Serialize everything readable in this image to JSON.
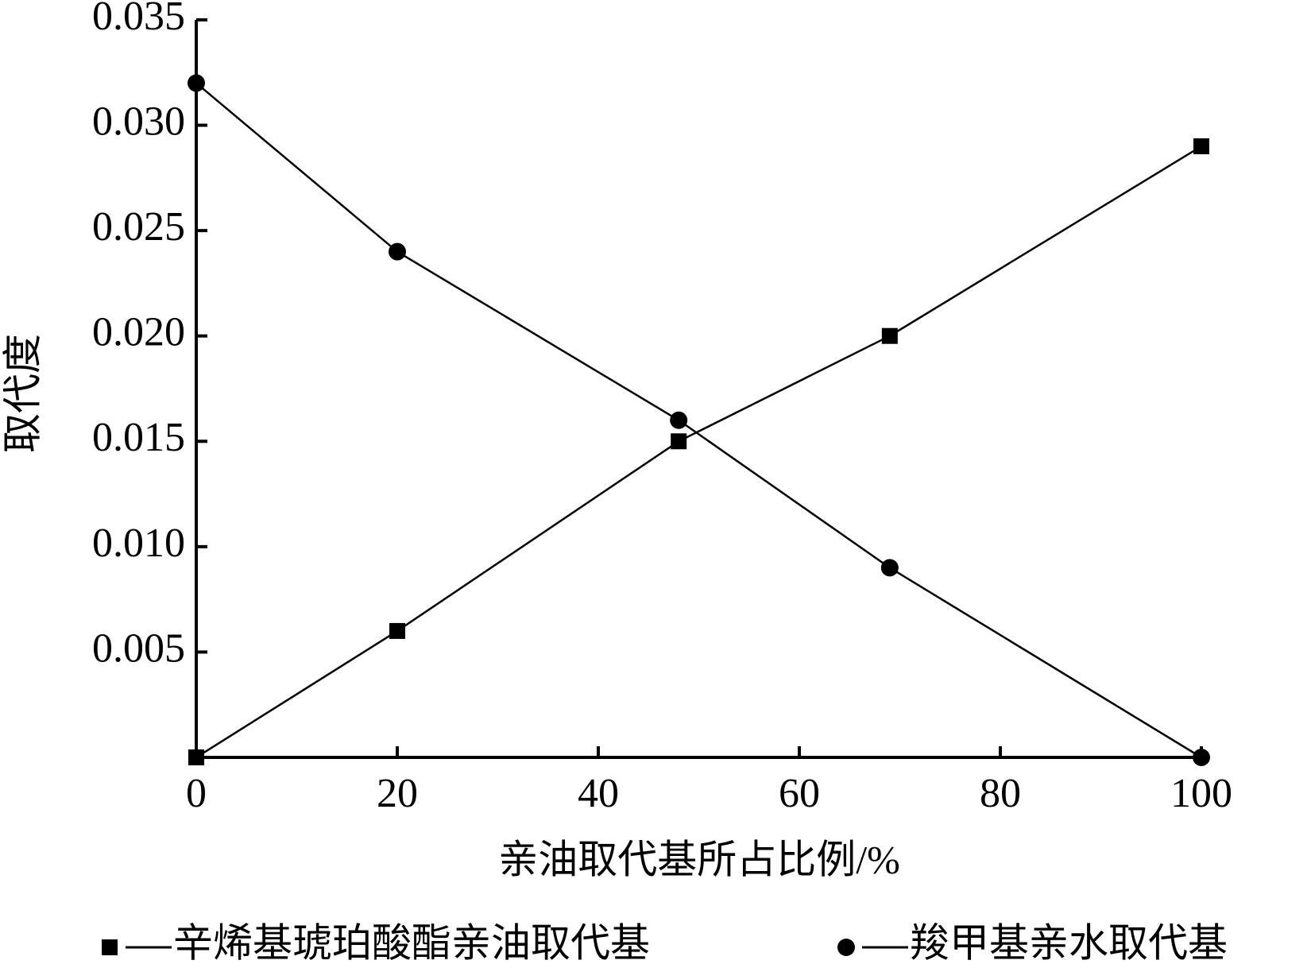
{
  "chart_data": {
    "type": "line",
    "x_label": "亲油取代基所占比例/%",
    "y_label": "取代度",
    "x": [
      0,
      20,
      48,
      69,
      100
    ],
    "series": [
      {
        "name": "辛烯基琥珀酸酯亲油取代基",
        "color": "#000000",
        "marker": "square",
        "values": [
          0,
          0.006,
          0.015,
          0.02,
          0.029
        ]
      },
      {
        "name": "羧甲基亲水取代基",
        "color": "#000000",
        "marker": "circle",
        "values": [
          0.032,
          0.024,
          0.016,
          0.009,
          0
        ]
      }
    ],
    "xlim": [
      0,
      100
    ],
    "xticks": [
      0,
      20,
      40,
      60,
      80,
      100
    ],
    "ylim": [
      0,
      0.035
    ],
    "yticks": [
      0.005,
      {
        "value": 0.01,
        "label": "0.010"
      },
      0.015,
      {
        "value": 0.02,
        "label": "0.020"
      },
      0.025,
      {
        "value": 0.03,
        "label": "0.030"
      },
      0.035
    ],
    "grid": false,
    "legend": "bottom"
  }
}
